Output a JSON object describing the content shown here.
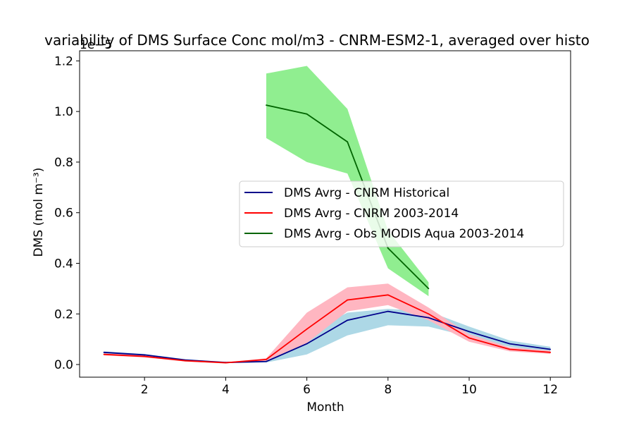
{
  "chart_data": {
    "type": "line",
    "title": "variability of DMS Surface Conc mol/m3 - CNRM-ESM2-1, averaged over histo",
    "xlabel": "Month",
    "ylabel": "DMS (mol m⁻³)",
    "offset_label": "1e−5",
    "xlim": [
      0.4,
      12.5
    ],
    "ylim": [
      -0.05,
      1.24
    ],
    "x_ticks": [
      2,
      4,
      6,
      8,
      10,
      12
    ],
    "y_ticks": [
      0.0,
      0.2,
      0.4,
      0.6,
      0.8,
      1.0,
      1.2
    ],
    "y_tick_labels": [
      "0.0",
      "0.2",
      "0.4",
      "0.6",
      "0.8",
      "1.0",
      "1.2"
    ],
    "legend_position": "center-right",
    "grid": false,
    "series": [
      {
        "name": "DMS Avrg - CNRM Historical",
        "color": "#00008b",
        "band_color": "#add8e6",
        "x": [
          1,
          2,
          3,
          4,
          5,
          6,
          7,
          8,
          9,
          10,
          11,
          12
        ],
        "values": [
          0.048,
          0.038,
          0.018,
          0.008,
          0.012,
          0.082,
          0.175,
          0.21,
          0.185,
          0.13,
          0.082,
          0.06
        ],
        "lower": [
          0.044,
          0.034,
          0.015,
          0.006,
          0.008,
          0.04,
          0.115,
          0.155,
          0.15,
          0.11,
          0.07,
          0.05
        ],
        "upper": [
          0.052,
          0.042,
          0.021,
          0.01,
          0.016,
          0.125,
          0.205,
          0.22,
          0.21,
          0.15,
          0.095,
          0.07
        ]
      },
      {
        "name": "DMS Avrg - CNRM 2003-2014",
        "color": "#ff0000",
        "band_color": "#ffb6c1",
        "x": [
          1,
          2,
          3,
          4,
          5,
          6,
          7,
          8,
          9,
          10,
          11,
          12
        ],
        "values": [
          0.04,
          0.032,
          0.015,
          0.007,
          0.02,
          0.14,
          0.255,
          0.275,
          0.2,
          0.105,
          0.06,
          0.048
        ],
        "lower": [
          0.036,
          0.028,
          0.012,
          0.005,
          0.015,
          0.085,
          0.21,
          0.235,
          0.175,
          0.09,
          0.052,
          0.042
        ],
        "upper": [
          0.044,
          0.036,
          0.018,
          0.009,
          0.025,
          0.205,
          0.305,
          0.32,
          0.225,
          0.12,
          0.068,
          0.055
        ]
      },
      {
        "name": "DMS Avrg - Obs MODIS Aqua 2003-2014",
        "color": "#006400",
        "band_color": "#90ee90",
        "x": [
          5,
          6,
          7,
          8,
          9
        ],
        "values": [
          1.025,
          0.99,
          0.88,
          0.46,
          0.3
        ],
        "lower": [
          0.895,
          0.8,
          0.755,
          0.38,
          0.27
        ],
        "upper": [
          1.15,
          1.18,
          1.01,
          0.53,
          0.325
        ]
      }
    ]
  }
}
